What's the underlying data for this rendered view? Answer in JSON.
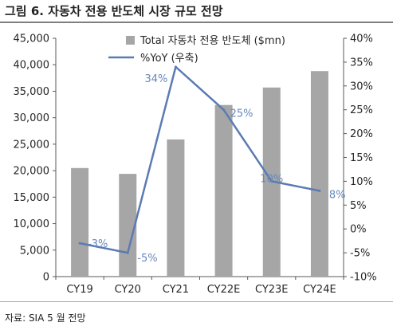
{
  "figure": {
    "title": "그림 6. 자동차 전용 반도체 시장 규모 전망",
    "source": "자료: SIA 5 월 전망"
  },
  "colors": {
    "bar": "#a6a6a6",
    "line": "#5b7bb3",
    "line_label": "#6688bb",
    "axis": "#595959",
    "text": "#262626"
  },
  "chart_data": {
    "type": "bar",
    "categories": [
      "CY19",
      "CY20",
      "CY21",
      "CY22E",
      "CY23E",
      "CY24E"
    ],
    "series": [
      {
        "name": "Total 자동차 전용 반도체 ($mn)",
        "type": "bar",
        "axis": "left",
        "values": [
          20500,
          19400,
          25900,
          32400,
          35700,
          38800
        ]
      },
      {
        "name": "%YoY (우축)",
        "type": "line",
        "axis": "right",
        "values": [
          -3,
          -5,
          34,
          25,
          10,
          8
        ],
        "labels": [
          "-3%",
          "-5%",
          "34%",
          "25%",
          "10%",
          "8%"
        ]
      }
    ],
    "y_left": {
      "range": [
        0,
        45000
      ],
      "ticks": [
        0,
        5000,
        10000,
        15000,
        20000,
        25000,
        30000,
        35000,
        40000,
        45000
      ],
      "tick_labels": [
        "0",
        "5,000",
        "10,000",
        "15,000",
        "20,000",
        "25,000",
        "30,000",
        "35,000",
        "40,000",
        "45,000"
      ]
    },
    "y_right": {
      "range": [
        -10,
        40
      ],
      "ticks": [
        -10,
        -5,
        0,
        5,
        10,
        15,
        20,
        25,
        30,
        35,
        40
      ],
      "tick_labels": [
        "-10%",
        "-5%",
        "0%",
        "5%",
        "10%",
        "15%",
        "20%",
        "25%",
        "30%",
        "35%",
        "40%"
      ]
    },
    "grid": false,
    "legend_position": "top"
  }
}
